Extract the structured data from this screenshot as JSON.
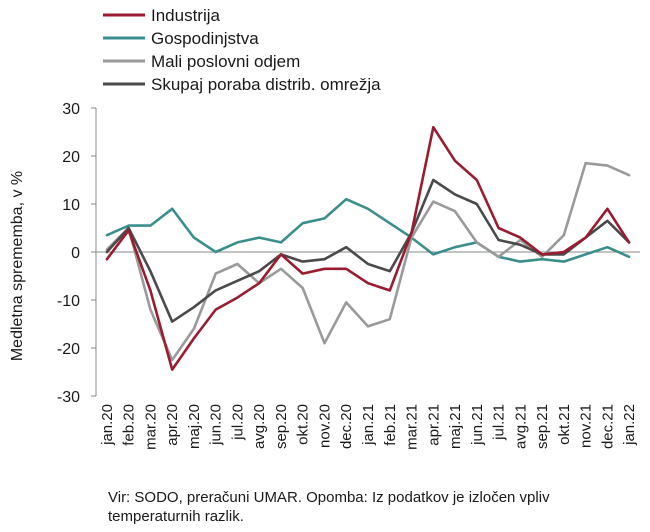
{
  "chart_data": {
    "type": "line",
    "ylabel": "Medletna sprememba, v %",
    "ylim": [
      -30,
      30
    ],
    "yticks": [
      -30,
      -20,
      -10,
      0,
      10,
      20,
      30
    ],
    "grid": false,
    "legend_position": "top",
    "categories": [
      "jan.20",
      "feb.20",
      "mar.20",
      "apr.20",
      "maj.20",
      "jun.20",
      "jul.20",
      "avg.20",
      "sep.20",
      "okt.20",
      "nov.20",
      "dec.20",
      "jan.21",
      "feb.21",
      "mar.21",
      "apr.21",
      "maj.21",
      "jun.21",
      "jul.21",
      "avg.21",
      "sep.21",
      "okt.21",
      "nov.21",
      "dec.21",
      "jan.22"
    ],
    "series": [
      {
        "name": "Industrija",
        "color": "#9b1b30",
        "values": [
          -1.5,
          4.5,
          -8,
          -24.5,
          -18,
          -12,
          -9.5,
          -6.5,
          -0.5,
          -4.5,
          -3.5,
          -3.5,
          -6.5,
          -8,
          4,
          26,
          19,
          15,
          5,
          3,
          -0.5,
          0,
          3,
          9,
          2
        ]
      },
      {
        "name": "Gospodinjstva",
        "color": "#3a8f8c",
        "values": [
          3.5,
          5.5,
          5.5,
          9,
          3,
          0,
          2,
          3,
          2,
          6,
          7,
          11,
          9,
          6,
          3,
          -0.5,
          1,
          2,
          -1,
          -2,
          -1.5,
          -2,
          -0.5,
          1,
          -1
        ]
      },
      {
        "name": "Mali poslovni odjem",
        "color": "#9a9a9a",
        "values": [
          0.5,
          5,
          -12,
          -22.5,
          -16,
          -4.5,
          -2.5,
          -6.5,
          -3.5,
          -7.5,
          -19,
          -10.5,
          -15.5,
          -14,
          3,
          10.5,
          8.5,
          2,
          -1,
          2.5,
          -1,
          3.5,
          18.5,
          18,
          16
        ]
      },
      {
        "name": "Skupaj poraba distrib. omrežja",
        "color": "#4a4a4a",
        "values": [
          0,
          5,
          -4,
          -14.5,
          -11.5,
          -8,
          -6,
          -4,
          -0.5,
          -2,
          -1.5,
          1,
          -2.5,
          -4,
          4,
          15,
          12,
          10,
          2.5,
          1.5,
          -0.5,
          -0.5,
          3,
          6.5,
          2
        ]
      }
    ]
  },
  "note": "Vir: SODO, preračuni UMAR. Opomba: Iz podatkov je izločen vpliv temperaturnih razlik."
}
